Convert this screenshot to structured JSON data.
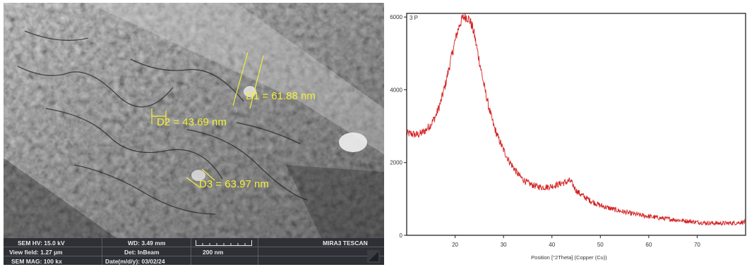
{
  "sem": {
    "measurements": [
      {
        "label": "D1 = 61.88 nm"
      },
      {
        "label": "D2 = 43.69 nm"
      },
      {
        "label": "D3 = 63.97 nm"
      }
    ],
    "info": {
      "hv": "SEM HV: 15.0 kV",
      "view_field": "View field: 1.27 µm",
      "mag": "SEM MAG: 100 kx",
      "wd": "WD: 3.49 mm",
      "det": "Det: InBeam",
      "date": "Date(m/d/y): 03/02/24",
      "scale": "200 nm",
      "instrument": "MIRA3 TESCAN"
    },
    "colors": {
      "annotation": "#f2ee3a",
      "info_bar": "#2f3036"
    }
  },
  "chart_data": {
    "type": "line",
    "xlabel": "Position [°2Theta] (Copper (Cu))",
    "panel_label": "3 P",
    "xlim": [
      10,
      80
    ],
    "ylim": [
      0,
      6100
    ],
    "x_ticks": [
      20,
      30,
      40,
      50,
      60,
      70
    ],
    "y_ticks": [
      0,
      2000,
      4000,
      6000
    ],
    "color": "#d42020",
    "grid": false,
    "series": [
      {
        "x": [
          10,
          11,
          12,
          13,
          14,
          15,
          16,
          17,
          18,
          19,
          20,
          20.5,
          21,
          21.5,
          22,
          22.5,
          23,
          23.5,
          24,
          24.5,
          25,
          25.5,
          26,
          26.5,
          27,
          27.5,
          28,
          29,
          30,
          31,
          32,
          33,
          34,
          35,
          36,
          37,
          38,
          39,
          40,
          41,
          42,
          43,
          43.5,
          44,
          44.5,
          45,
          46,
          47,
          48,
          49,
          50,
          52,
          54,
          56,
          58,
          60,
          62,
          64,
          66,
          68,
          70,
          72,
          74,
          76,
          78,
          80
        ],
        "y": [
          2800,
          2790,
          2760,
          2800,
          2900,
          3050,
          3280,
          3650,
          4150,
          4750,
          5350,
          5600,
          5820,
          5950,
          6020,
          6000,
          5920,
          5750,
          5500,
          5150,
          4800,
          4450,
          4100,
          3800,
          3500,
          3250,
          3000,
          2650,
          2350,
          2080,
          1870,
          1680,
          1540,
          1440,
          1380,
          1340,
          1320,
          1330,
          1350,
          1390,
          1430,
          1460,
          1500,
          1460,
          1350,
          1230,
          1120,
          1030,
          950,
          880,
          820,
          740,
          670,
          610,
          560,
          520,
          480,
          450,
          420,
          390,
          360,
          340,
          330,
          330,
          340,
          370
        ]
      }
    ]
  }
}
